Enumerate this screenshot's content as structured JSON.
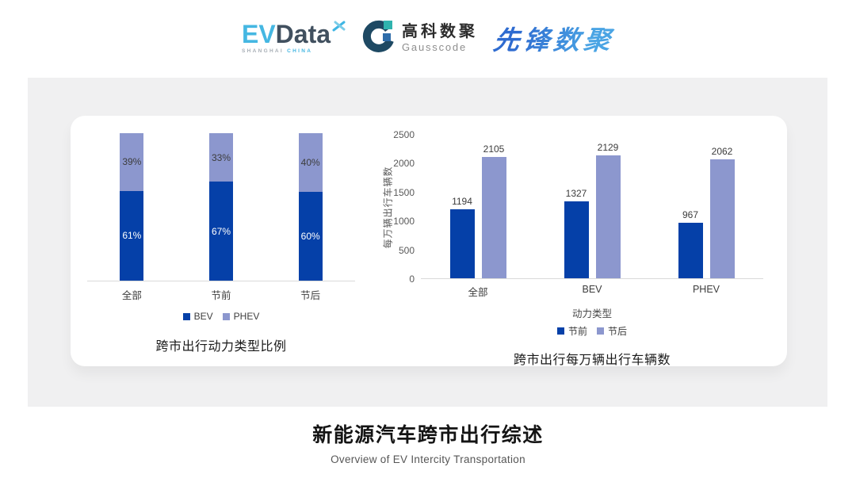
{
  "header": {
    "evdata": {
      "ev": "EV",
      "data": "Data",
      "sub_left": "SHANGHAI",
      "sub_right": "CHINA"
    },
    "gausscode": {
      "cn": "高科数聚",
      "en": "Gausscode"
    },
    "pioneer": {
      "text": "先锋数聚"
    }
  },
  "colors": {
    "bev": "#0540A8",
    "phev": "#8C97CE",
    "evdata_blue": "#45B7E2",
    "evdata_dark": "#41505F",
    "gauss_navy": "#1E4963",
    "gauss_teal": "#2FB3AE",
    "gauss_blue": "#2E6CA9",
    "pioneer_from": "#2E6BD0",
    "pioneer_to": "#4AA4E4",
    "axis_line": "#DADADA"
  },
  "chart_data": [
    {
      "type": "bar",
      "subtype": "stacked-100-percent",
      "title": "跨市出行动力类型比例",
      "categories": [
        "全部",
        "节前",
        "节后"
      ],
      "series": [
        {
          "name": "BEV",
          "key": "bev",
          "color": "#0540A8",
          "values": [
            61,
            67,
            60
          ],
          "label_color": "#FFFFFF"
        },
        {
          "name": "PHEV",
          "key": "phev",
          "color": "#8C97CE",
          "values": [
            39,
            33,
            40
          ],
          "label_color": "#3C3C3C"
        }
      ],
      "unit": "%",
      "legend_position": "bottom",
      "grid": false,
      "ylim": [
        0,
        100
      ]
    },
    {
      "type": "bar",
      "subtype": "grouped",
      "title": "跨市出行每万辆出行车辆数",
      "categories": [
        "全部",
        "BEV",
        "PHEV"
      ],
      "series": [
        {
          "name": "节前",
          "key": "pre-holiday",
          "color": "#0540A8",
          "values": [
            1194,
            1327,
            967
          ]
        },
        {
          "name": "节后",
          "key": "post-holiday",
          "color": "#8C97CE",
          "values": [
            2105,
            2129,
            2062
          ]
        }
      ],
      "xlabel": "动力类型",
      "ylabel": "每万辆出行车辆数",
      "ylim": [
        0,
        2500
      ],
      "yticks": [
        0,
        500,
        1000,
        1500,
        2000,
        2500
      ],
      "legend_position": "bottom",
      "grid": false
    }
  ],
  "footer": {
    "title": "新能源汽车跨市出行综述",
    "subtitle": "Overview of EV Intercity Transportation"
  }
}
